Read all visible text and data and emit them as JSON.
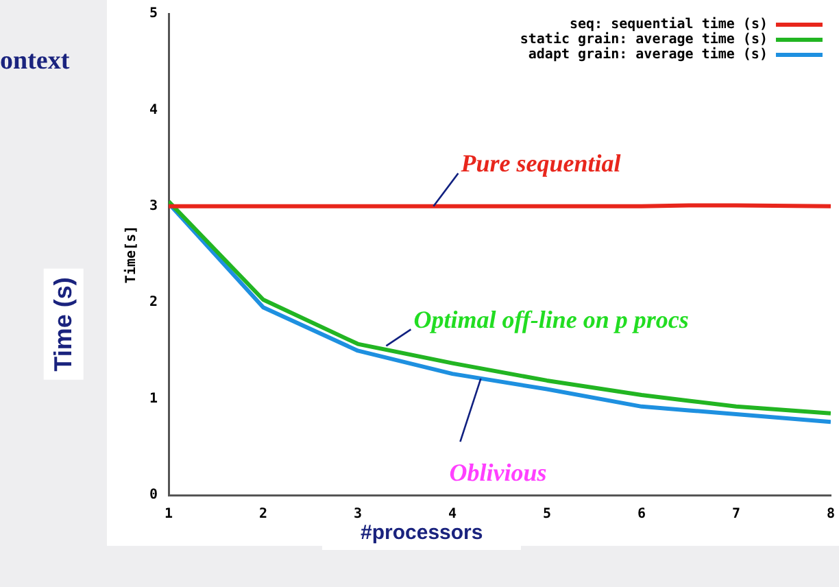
{
  "chart_data": {
    "type": "line",
    "xlabel": "#processors",
    "ylabel": "Time[s]",
    "x": [
      1,
      2,
      3,
      4,
      5,
      6,
      6.5,
      7,
      8
    ],
    "series": [
      {
        "name": "seq: sequential time (s)",
        "color": "#e8261c",
        "values": [
          3.0,
          3.0,
          3.0,
          3.0,
          3.0,
          3.0,
          3.01,
          3.01,
          3.0
        ]
      },
      {
        "name": "static grain: average time (s)",
        "color": "#22b522",
        "values": [
          3.05,
          2.03,
          1.57,
          1.37,
          1.19,
          1.04,
          0.98,
          0.92,
          0.85
        ]
      },
      {
        "name": "adapt grain: average time (s)",
        "color": "#1e90e0",
        "values": [
          3.03,
          1.95,
          1.5,
          1.26,
          1.1,
          0.92,
          0.88,
          0.84,
          0.76
        ]
      }
    ],
    "xlim": [
      1,
      8
    ],
    "xticks": [
      1,
      2,
      3,
      4,
      5,
      6,
      7,
      8
    ],
    "ylim": [
      0,
      5
    ],
    "yticks": [
      0,
      1,
      2,
      3,
      4,
      5
    ],
    "grid": false,
    "legend": "top right",
    "marker": "none",
    "line_style": "solid",
    "annotations": [
      {
        "text": "Pure sequential",
        "x": 3.8,
        "y": 3.0
      },
      {
        "text": "Optimal off-line on p procs",
        "x": 3.3,
        "y": 1.55
      },
      {
        "text": "Oblivious",
        "x": 4.3,
        "y": 1.21
      },
      "ontext",
      "Time (s)"
    ]
  }
}
